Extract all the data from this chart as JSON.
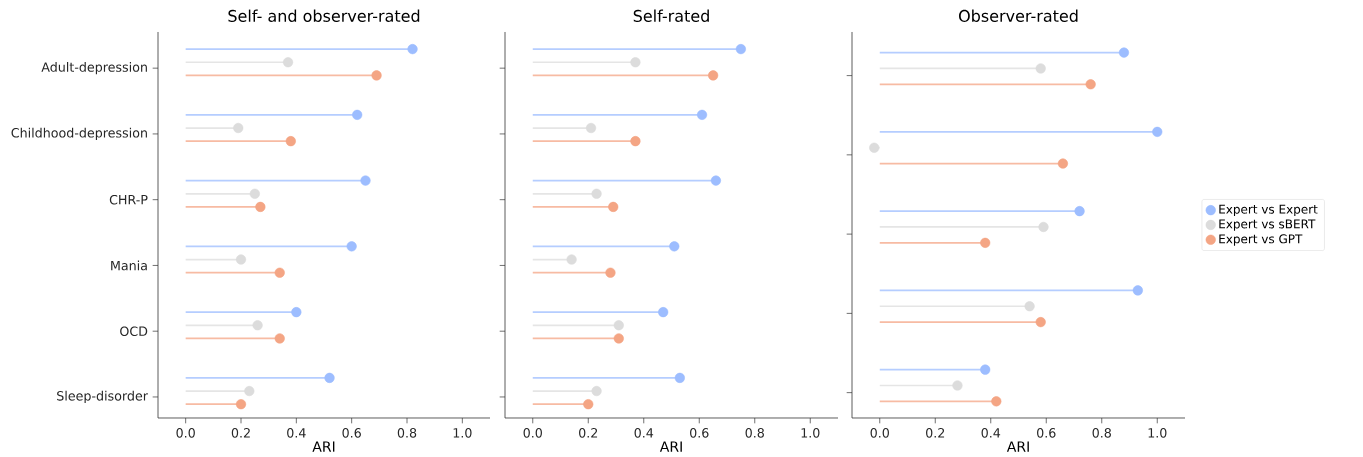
{
  "chart_data": [
    {
      "type": "lollipop",
      "orientation": "horizontal",
      "title": "Self- and observer-rated",
      "xlabel": "ARI",
      "categories": [
        "Adult-depression",
        "Childhood-depression",
        "CHR-P",
        "Mania",
        "OCD",
        "Sleep-disorder"
      ],
      "series": [
        {
          "color": "#9dbdff",
          "values": [
            0.82,
            0.62,
            0.65,
            0.6,
            0.4,
            0.52
          ]
        },
        {
          "color": "#dcdcdc",
          "values": [
            0.37,
            0.19,
            0.25,
            0.2,
            0.26,
            0.23
          ]
        },
        {
          "color": "#f4a584",
          "values": [
            0.69,
            0.38,
            0.27,
            0.34,
            0.34,
            0.2
          ]
        }
      ],
      "xlim": [
        -0.1,
        1.1
      ],
      "xticks": [
        {
          "value": 0,
          "label": "0.0"
        },
        {
          "value": 0.2,
          "label": "0.2"
        },
        {
          "value": 0.4,
          "label": "0.4"
        },
        {
          "value": 0.6,
          "label": "0.6"
        },
        {
          "value": 0.8,
          "label": "0.8"
        },
        {
          "value": 1,
          "label": "1.0"
        }
      ]
    },
    {
      "type": "lollipop",
      "orientation": "horizontal",
      "title": "Self-rated",
      "xlabel": "ARI",
      "tick_labels": "x",
      "categories": [
        null,
        null,
        null,
        null,
        null,
        null
      ],
      "series": [
        {
          "color": "#9dbdff",
          "values": [
            0.75,
            0.61,
            0.66,
            0.51,
            0.47,
            0.53
          ]
        },
        {
          "color": "#dcdcdc",
          "values": [
            0.37,
            0.21,
            0.23,
            0.14,
            0.31,
            0.23
          ]
        },
        {
          "color": "#f4a584",
          "values": [
            0.65,
            0.37,
            0.29,
            0.28,
            0.31,
            0.2
          ]
        }
      ],
      "xlim": [
        -0.1,
        1.1
      ],
      "xticks": [
        {
          "value": 0,
          "label": "0.0"
        },
        {
          "value": 0.2,
          "label": "0.2"
        },
        {
          "value": 0.4,
          "label": "0.4"
        },
        {
          "value": 0.6,
          "label": "0.6"
        },
        {
          "value": 0.8,
          "label": "0.8"
        },
        {
          "value": 1,
          "label": "1.0"
        }
      ]
    },
    {
      "type": "lollipop",
      "orientation": "horizontal",
      "title": "Observer-rated",
      "xlabel": "ARI",
      "tick_labels": "x",
      "legend": "right",
      "categories": [
        null,
        null,
        null,
        null,
        null
      ],
      "series": [
        {
          "name": "Expert vs Expert",
          "color": "#9dbdff",
          "values": [
            0.88,
            1.0,
            0.72,
            0.93,
            0.38
          ]
        },
        {
          "name": "Expert vs sBERT",
          "color": "#dcdcdc",
          "values": [
            0.58,
            -0.02,
            0.59,
            0.54,
            0.28
          ]
        },
        {
          "name": "Expert vs GPT",
          "color": "#f4a584",
          "values": [
            0.76,
            0.66,
            0.38,
            0.58,
            0.42
          ]
        }
      ],
      "xlim": [
        -0.1,
        1.1
      ],
      "xticks": [
        {
          "value": 0,
          "label": "0.0"
        },
        {
          "value": 0.2,
          "label": "0.2"
        },
        {
          "value": 0.4,
          "label": "0.4"
        },
        {
          "value": 0.6,
          "label": "0.6"
        },
        {
          "value": 0.8,
          "label": "0.8"
        },
        {
          "value": 1,
          "label": "1.0"
        }
      ]
    }
  ]
}
